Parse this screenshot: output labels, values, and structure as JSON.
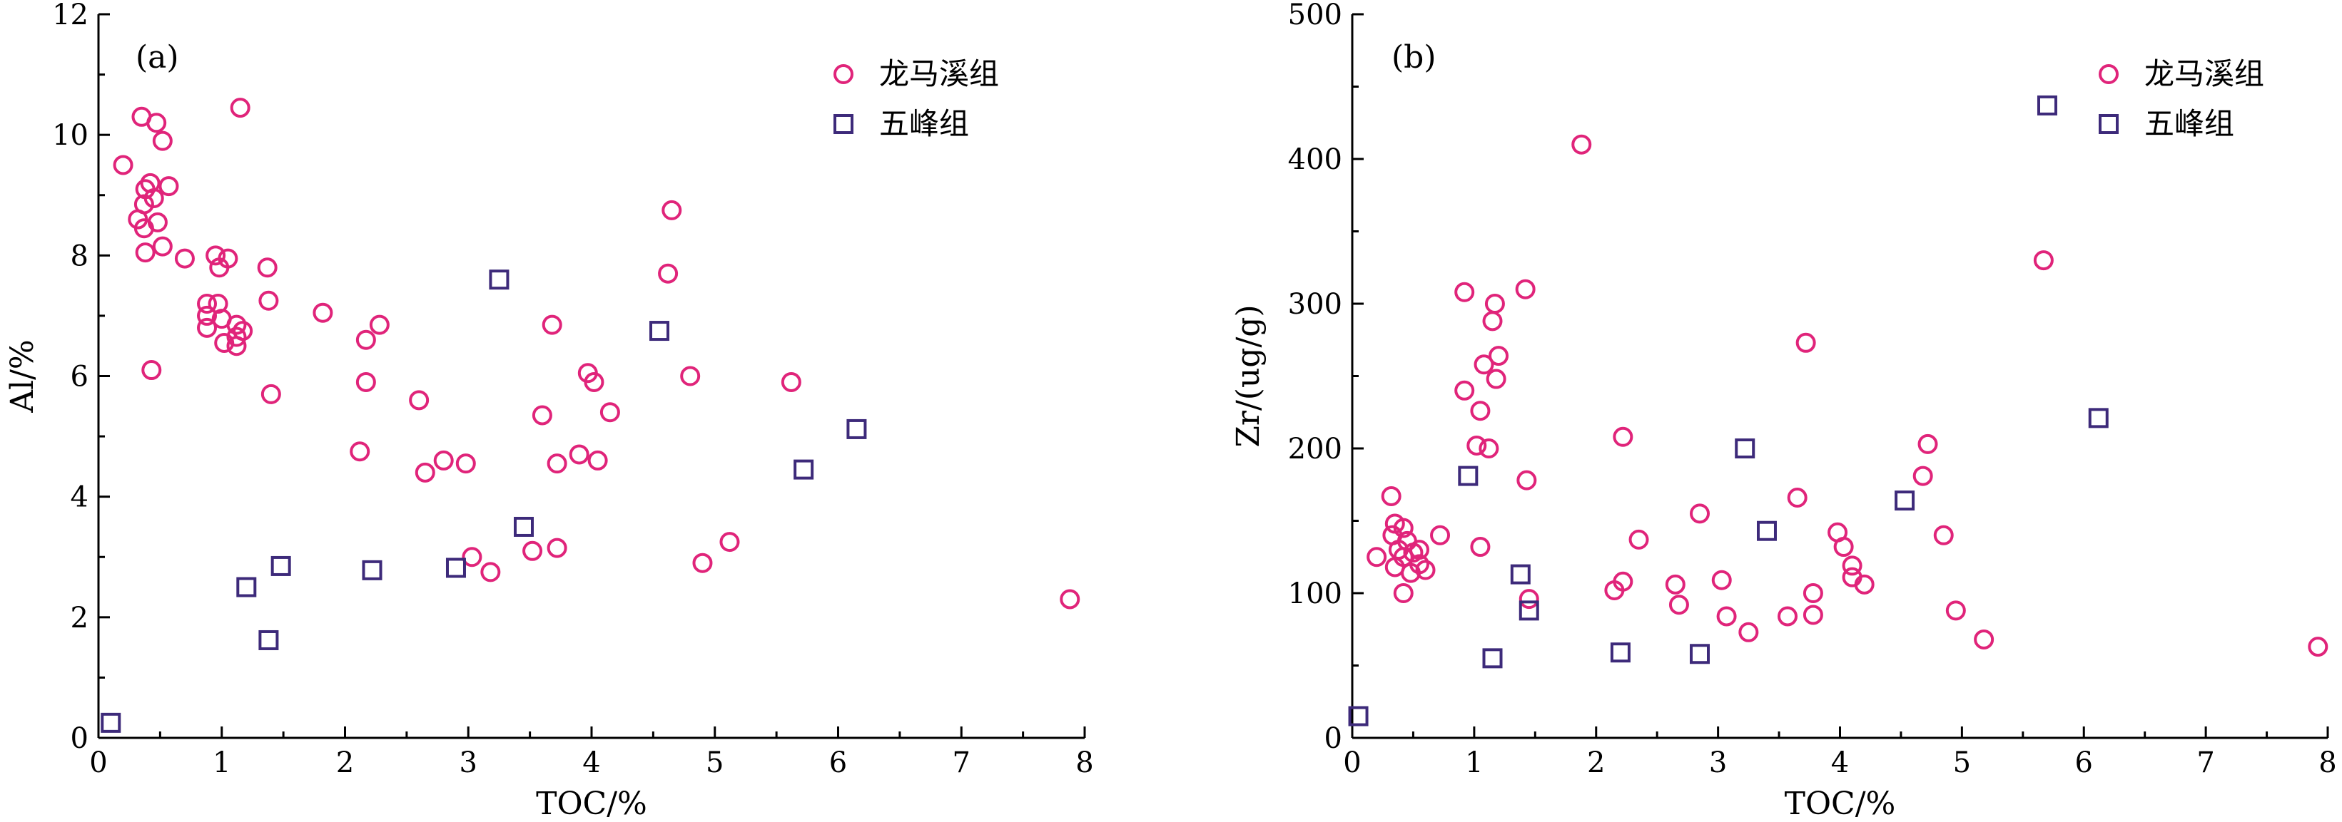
{
  "colors": {
    "longmaxi": "#e0247a",
    "wufeng": "#3d2a7a",
    "axis": "#000000"
  },
  "chart_data": [
    {
      "type": "scatter",
      "panel_label": "(a)",
      "xlabel": "TOC/%",
      "ylabel": "Al/%",
      "xlim": [
        0,
        8
      ],
      "ylim": [
        0,
        12
      ],
      "xticks": [
        0,
        1,
        2,
        3,
        4,
        5,
        6,
        7,
        8
      ],
      "yticks": [
        0,
        2,
        4,
        6,
        8,
        10,
        12
      ],
      "legend_position": "top-right",
      "series": [
        {
          "name": "龙马溪组",
          "marker": "circle",
          "points": [
            [
              0.35,
              10.3
            ],
            [
              0.47,
              10.2
            ],
            [
              0.52,
              9.9
            ],
            [
              0.2,
              9.5
            ],
            [
              0.42,
              9.2
            ],
            [
              0.57,
              9.15
            ],
            [
              0.38,
              9.1
            ],
            [
              0.45,
              8.95
            ],
            [
              0.37,
              8.85
            ],
            [
              0.32,
              8.6
            ],
            [
              0.48,
              8.55
            ],
            [
              0.37,
              8.45
            ],
            [
              0.52,
              8.15
            ],
            [
              0.38,
              8.05
            ],
            [
              0.7,
              7.95
            ],
            [
              0.95,
              8.0
            ],
            [
              1.05,
              7.95
            ],
            [
              0.98,
              7.8
            ],
            [
              1.15,
              10.45
            ],
            [
              1.37,
              7.8
            ],
            [
              1.38,
              7.25
            ],
            [
              0.88,
              7.2
            ],
            [
              0.97,
              7.2
            ],
            [
              0.88,
              7.0
            ],
            [
              1.0,
              6.95
            ],
            [
              0.88,
              6.8
            ],
            [
              1.12,
              6.85
            ],
            [
              1.17,
              6.75
            ],
            [
              1.12,
              6.65
            ],
            [
              1.02,
              6.55
            ],
            [
              1.12,
              6.5
            ],
            [
              0.43,
              6.1
            ],
            [
              1.4,
              5.7
            ],
            [
              1.82,
              7.05
            ],
            [
              2.28,
              6.85
            ],
            [
              2.17,
              6.6
            ],
            [
              2.17,
              5.9
            ],
            [
              2.12,
              4.75
            ],
            [
              2.6,
              5.6
            ],
            [
              2.65,
              4.4
            ],
            [
              2.8,
              4.6
            ],
            [
              2.98,
              4.55
            ],
            [
              3.03,
              3.0
            ],
            [
              3.18,
              2.75
            ],
            [
              3.52,
              3.1
            ],
            [
              3.6,
              5.35
            ],
            [
              3.68,
              6.85
            ],
            [
              3.72,
              4.55
            ],
            [
              3.72,
              3.15
            ],
            [
              3.9,
              4.7
            ],
            [
              3.97,
              6.05
            ],
            [
              4.02,
              5.9
            ],
            [
              4.05,
              4.6
            ],
            [
              4.15,
              5.4
            ],
            [
              4.62,
              7.7
            ],
            [
              4.65,
              8.75
            ],
            [
              4.8,
              6.0
            ],
            [
              4.9,
              2.9
            ],
            [
              5.12,
              3.25
            ],
            [
              5.62,
              5.9
            ],
            [
              7.88,
              2.3
            ]
          ]
        },
        {
          "name": "五峰组",
          "marker": "square",
          "points": [
            [
              0.1,
              0.25
            ],
            [
              1.2,
              2.5
            ],
            [
              1.48,
              2.85
            ],
            [
              1.38,
              1.62
            ],
            [
              2.22,
              2.78
            ],
            [
              2.9,
              2.82
            ],
            [
              3.25,
              7.6
            ],
            [
              3.45,
              3.5
            ],
            [
              4.55,
              6.75
            ],
            [
              5.72,
              4.45
            ],
            [
              6.15,
              5.12
            ]
          ]
        }
      ]
    },
    {
      "type": "scatter",
      "panel_label": "(b)",
      "xlabel": "TOC/%",
      "ylabel": "Zr/(ug/g)",
      "xlim": [
        0,
        8
      ],
      "ylim": [
        0,
        500
      ],
      "xticks": [
        0,
        1,
        2,
        3,
        4,
        5,
        6,
        7,
        8
      ],
      "yticks": [
        0,
        100,
        200,
        300,
        400,
        500
      ],
      "legend_position": "top-right",
      "series": [
        {
          "name": "龙马溪组",
          "marker": "circle",
          "points": [
            [
              0.32,
              167
            ],
            [
              0.35,
              148
            ],
            [
              0.42,
              145
            ],
            [
              0.33,
              140
            ],
            [
              0.45,
              136
            ],
            [
              0.38,
              130
            ],
            [
              0.5,
              128
            ],
            [
              0.42,
              125
            ],
            [
              0.2,
              125
            ],
            [
              0.35,
              118
            ],
            [
              0.55,
              120
            ],
            [
              0.6,
              116
            ],
            [
              0.48,
              114
            ],
            [
              0.42,
              100
            ],
            [
              0.55,
              130
            ],
            [
              0.72,
              140
            ],
            [
              0.92,
              308
            ],
            [
              0.92,
              240
            ],
            [
              1.02,
              202
            ],
            [
              1.05,
              226
            ],
            [
              1.05,
              132
            ],
            [
              1.08,
              258
            ],
            [
              1.12,
              200
            ],
            [
              1.15,
              288
            ],
            [
              1.17,
              300
            ],
            [
              1.2,
              264
            ],
            [
              1.18,
              248
            ],
            [
              1.42,
              310
            ],
            [
              1.43,
              178
            ],
            [
              1.45,
              96
            ],
            [
              1.88,
              410
            ],
            [
              2.15,
              102
            ],
            [
              2.22,
              108
            ],
            [
              2.22,
              208
            ],
            [
              2.35,
              137
            ],
            [
              2.65,
              106
            ],
            [
              2.68,
              92
            ],
            [
              2.85,
              155
            ],
            [
              3.03,
              109
            ],
            [
              3.07,
              84
            ],
            [
              3.25,
              73
            ],
            [
              3.57,
              84
            ],
            [
              3.65,
              166
            ],
            [
              3.72,
              273
            ],
            [
              3.78,
              100
            ],
            [
              3.78,
              85
            ],
            [
              3.98,
              142
            ],
            [
              4.03,
              132
            ],
            [
              4.1,
              119
            ],
            [
              4.1,
              111
            ],
            [
              4.2,
              106
            ],
            [
              4.68,
              181
            ],
            [
              4.72,
              203
            ],
            [
              4.85,
              140
            ],
            [
              4.95,
              88
            ],
            [
              5.18,
              68
            ],
            [
              5.67,
              330
            ],
            [
              7.92,
              63
            ]
          ]
        },
        {
          "name": "五峰组",
          "marker": "square",
          "points": [
            [
              0.05,
              15
            ],
            [
              0.95,
              181
            ],
            [
              1.15,
              55
            ],
            [
              1.38,
              113
            ],
            [
              1.45,
              88
            ],
            [
              2.2,
              59
            ],
            [
              2.85,
              58
            ],
            [
              3.22,
              200
            ],
            [
              3.4,
              143
            ],
            [
              4.53,
              164
            ],
            [
              5.7,
              437
            ],
            [
              6.12,
              221
            ]
          ]
        }
      ]
    }
  ]
}
